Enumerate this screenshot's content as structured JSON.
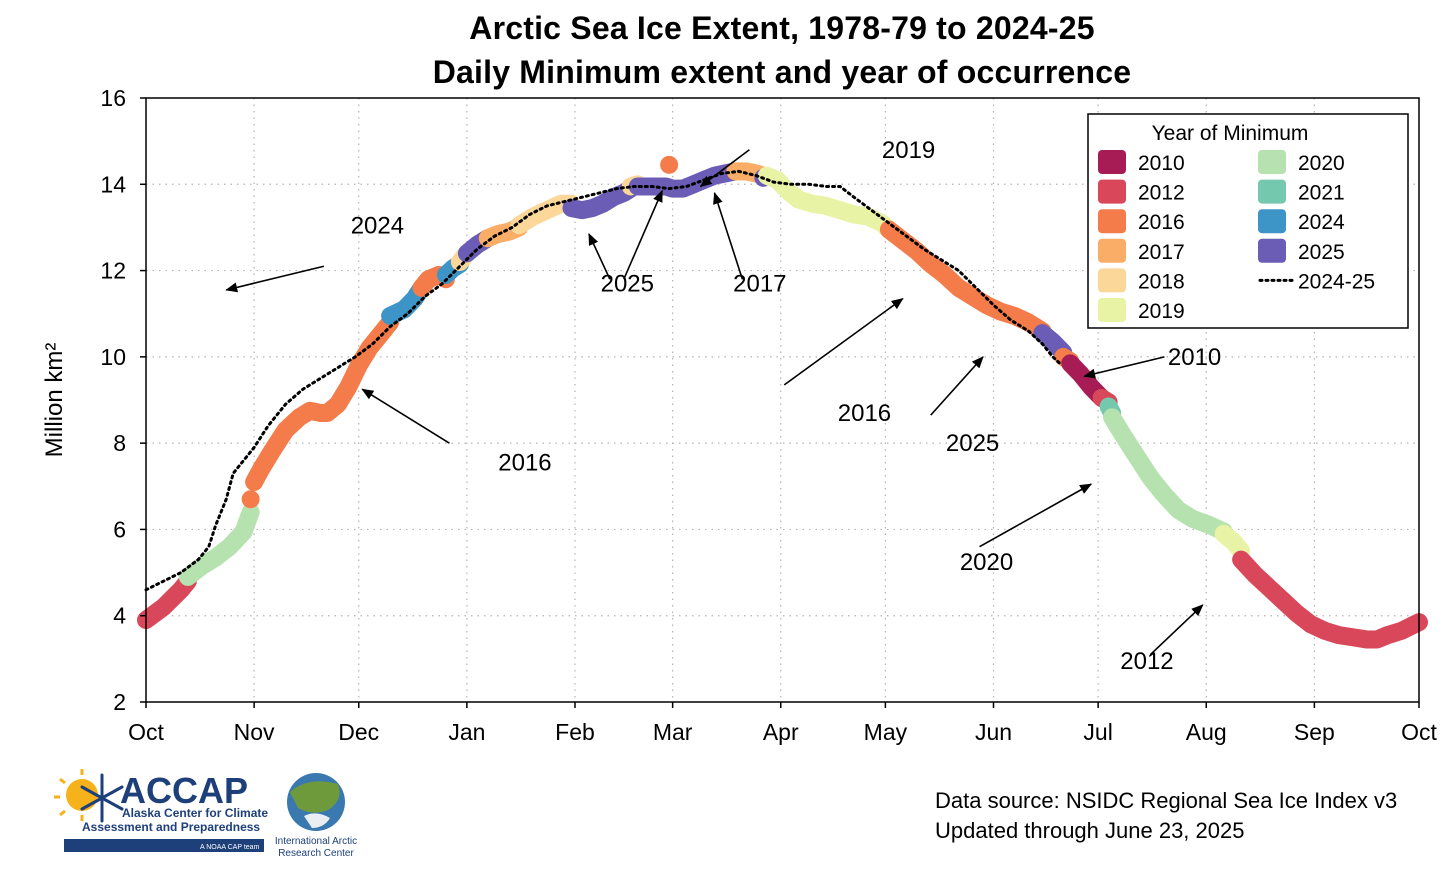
{
  "title": "Arctic Sea Ice Extent, 1978-79 to 2024-25",
  "subtitle": "Daily Minimum extent and year of occurrence",
  "footer": {
    "source": "Data source: NSIDC Regional Sea Ice Index v3",
    "updated": "Updated through June 23, 2025"
  },
  "logos": {
    "accap_name": "ACCAP",
    "accap_line1": "Alaska Center for Climate",
    "accap_line2": "Assessment and Preparedness",
    "accap_tag": "A NOAA CAP team",
    "iarc_line1": "International Arctic",
    "iarc_line2": "Research Center"
  },
  "chart_data": {
    "type": "line",
    "ylabel": "Million km²",
    "xlabel": "",
    "ylim": [
      2,
      16
    ],
    "yticks": [
      2,
      4,
      6,
      8,
      10,
      12,
      14,
      16
    ],
    "xlim_days": [
      0,
      365
    ],
    "xticks": [
      {
        "label": "Oct",
        "day": 0
      },
      {
        "label": "Nov",
        "day": 31
      },
      {
        "label": "Dec",
        "day": 61
      },
      {
        "label": "Jan",
        "day": 92
      },
      {
        "label": "Feb",
        "day": 123
      },
      {
        "label": "Mar",
        "day": 151
      },
      {
        "label": "Apr",
        "day": 182
      },
      {
        "label": "May",
        "day": 212
      },
      {
        "label": "Jun",
        "day": 243
      },
      {
        "label": "Jul",
        "day": 273
      },
      {
        "label": "Aug",
        "day": 304
      },
      {
        "label": "Sep",
        "day": 335
      },
      {
        "label": "Oct",
        "day": 365
      }
    ],
    "grid": true,
    "legend": {
      "title": "Year of Minimum",
      "placement": "top-right",
      "entries": [
        {
          "label": "2010",
          "color": "#a81c56"
        },
        {
          "label": "2012",
          "color": "#d9485a"
        },
        {
          "label": "2016",
          "color": "#f47c4a"
        },
        {
          "label": "2017",
          "color": "#f9ad67"
        },
        {
          "label": "2018",
          "color": "#fbd899"
        },
        {
          "label": "2019",
          "color": "#e8f3a6"
        },
        {
          "label": "2020",
          "color": "#b5e2ae"
        },
        {
          "label": "2021",
          "color": "#73c8ad"
        },
        {
          "label": "2024",
          "color": "#3d94c6"
        },
        {
          "label": "2025",
          "color": "#6b5cb5"
        },
        {
          "label": "2024-25",
          "color": "#000000",
          "style": "dotted"
        }
      ]
    },
    "series": [
      {
        "name": "2012",
        "color": "#d9485a",
        "points": [
          [
            0,
            3.9
          ],
          [
            5,
            4.2
          ],
          [
            10,
            4.6
          ],
          [
            12,
            4.8
          ]
        ]
      },
      {
        "name": "2020",
        "color": "#b5e2ae",
        "points": [
          [
            12,
            4.9
          ],
          [
            16,
            5.15
          ],
          [
            20,
            5.35
          ],
          [
            24,
            5.6
          ],
          [
            28,
            5.95
          ],
          [
            30,
            6.4
          ]
        ]
      },
      {
        "name": "2016",
        "color": "#f47c4a",
        "points": [
          [
            30,
            6.7
          ]
        ]
      },
      {
        "name": "2016",
        "color": "#f47c4a",
        "points": [
          [
            31,
            7.1
          ],
          [
            33,
            7.4
          ],
          [
            36,
            7.8
          ],
          [
            40,
            8.3
          ],
          [
            44,
            8.6
          ],
          [
            47,
            8.75
          ],
          [
            50,
            8.7
          ],
          [
            52,
            8.7
          ],
          [
            55,
            8.9
          ],
          [
            58,
            9.3
          ],
          [
            61,
            9.8
          ],
          [
            64,
            10.2
          ],
          [
            67,
            10.5
          ],
          [
            70,
            10.8
          ]
        ]
      },
      {
        "name": "2024",
        "color": "#3d94c6",
        "points": [
          [
            70,
            10.95
          ],
          [
            74,
            11.1
          ],
          [
            77,
            11.35
          ],
          [
            79,
            11.6
          ]
        ]
      },
      {
        "name": "2016",
        "color": "#f47c4a",
        "points": [
          [
            79,
            11.6
          ],
          [
            81,
            11.8
          ],
          [
            84,
            11.9
          ],
          [
            86,
            11.8
          ]
        ]
      },
      {
        "name": "2024",
        "color": "#3d94c6",
        "points": [
          [
            86,
            11.9
          ],
          [
            88,
            12.05
          ],
          [
            90,
            12.15
          ]
        ]
      },
      {
        "name": "2018",
        "color": "#fbd899",
        "points": [
          [
            90,
            12.2
          ],
          [
            92,
            12.4
          ]
        ]
      },
      {
        "name": "2025",
        "color": "#6b5cb5",
        "points": [
          [
            92,
            12.4
          ],
          [
            95,
            12.6
          ],
          [
            98,
            12.75
          ]
        ]
      },
      {
        "name": "2017",
        "color": "#f9ad67",
        "points": [
          [
            98,
            12.75
          ],
          [
            101,
            12.85
          ],
          [
            104,
            12.9
          ],
          [
            107,
            13.0
          ]
        ]
      },
      {
        "name": "2018",
        "color": "#fbd899",
        "points": [
          [
            107,
            13.05
          ],
          [
            111,
            13.25
          ],
          [
            115,
            13.4
          ],
          [
            119,
            13.55
          ],
          [
            122,
            13.55
          ]
        ]
      },
      {
        "name": "2025",
        "color": "#6b5cb5",
        "points": [
          [
            122,
            13.45
          ],
          [
            125,
            13.4
          ],
          [
            128,
            13.45
          ],
          [
            131,
            13.55
          ],
          [
            134,
            13.7
          ],
          [
            137,
            13.8
          ],
          [
            139,
            13.9
          ]
        ]
      },
      {
        "name": "2018",
        "color": "#fbd899",
        "points": [
          [
            139,
            13.95
          ],
          [
            141,
            14.0
          ]
        ]
      },
      {
        "name": "2025",
        "color": "#6b5cb5",
        "points": [
          [
            141,
            13.95
          ],
          [
            145,
            13.95
          ],
          [
            149,
            13.95
          ],
          [
            151,
            13.9
          ],
          [
            154,
            13.9
          ],
          [
            157,
            14.0
          ],
          [
            160,
            14.1
          ],
          [
            163,
            14.2
          ],
          [
            166,
            14.25
          ],
          [
            169,
            14.3
          ]
        ]
      },
      {
        "name": "2017",
        "color": "#f9ad67",
        "points": [
          [
            169,
            14.3
          ],
          [
            172,
            14.3
          ],
          [
            175,
            14.25
          ],
          [
            177,
            14.2
          ]
        ]
      },
      {
        "name": "2025",
        "color": "#6b5cb5",
        "points": [
          [
            177,
            14.15
          ]
        ]
      },
      {
        "name": "2019",
        "color": "#e8f3a6",
        "points": [
          [
            178,
            14.2
          ],
          [
            181,
            14.1
          ],
          [
            184,
            13.85
          ],
          [
            187,
            13.65
          ],
          [
            191,
            13.55
          ],
          [
            195,
            13.5
          ],
          [
            199,
            13.4
          ],
          [
            203,
            13.3
          ],
          [
            207,
            13.25
          ],
          [
            211,
            13.1
          ],
          [
            213,
            12.95
          ]
        ]
      },
      {
        "name": "2016",
        "color": "#f47c4a",
        "points": [
          [
            213,
            12.95
          ],
          [
            217,
            12.7
          ],
          [
            221,
            12.45
          ],
          [
            225,
            12.15
          ],
          [
            229,
            11.9
          ],
          [
            233,
            11.6
          ],
          [
            237,
            11.4
          ],
          [
            241,
            11.2
          ],
          [
            245,
            11.05
          ],
          [
            249,
            10.95
          ],
          [
            253,
            10.8
          ],
          [
            257,
            10.6
          ]
        ]
      },
      {
        "name": "2025",
        "color": "#6b5cb5",
        "points": [
          [
            257,
            10.55
          ],
          [
            260,
            10.35
          ],
          [
            263,
            10.1
          ]
        ]
      },
      {
        "name": "2016",
        "color": "#f47c4a",
        "points": [
          [
            263,
            10.0
          ],
          [
            265,
            9.9
          ]
        ]
      },
      {
        "name": "2010",
        "color": "#a81c56",
        "points": [
          [
            265,
            9.85
          ],
          [
            268,
            9.6
          ],
          [
            271,
            9.3
          ],
          [
            274,
            9.05
          ]
        ]
      },
      {
        "name": "2012",
        "color": "#d9485a",
        "points": [
          [
            274,
            9.05
          ],
          [
            276,
            8.95
          ]
        ]
      },
      {
        "name": "2021",
        "color": "#73c8ad",
        "points": [
          [
            276,
            8.85
          ],
          [
            277,
            8.7
          ]
        ]
      },
      {
        "name": "2020",
        "color": "#b5e2ae",
        "points": [
          [
            277,
            8.6
          ],
          [
            280,
            8.2
          ],
          [
            284,
            7.7
          ],
          [
            288,
            7.2
          ],
          [
            292,
            6.8
          ],
          [
            296,
            6.45
          ],
          [
            300,
            6.25
          ],
          [
            305,
            6.1
          ],
          [
            309,
            5.95
          ]
        ]
      },
      {
        "name": "2019",
        "color": "#e8f3a6",
        "points": [
          [
            309,
            5.9
          ],
          [
            312,
            5.7
          ],
          [
            314,
            5.5
          ]
        ]
      },
      {
        "name": "2012",
        "color": "#d9485a",
        "points": [
          [
            314,
            5.3
          ],
          [
            318,
            4.95
          ],
          [
            322,
            4.65
          ],
          [
            326,
            4.35
          ],
          [
            330,
            4.05
          ],
          [
            334,
            3.8
          ],
          [
            338,
            3.65
          ],
          [
            342,
            3.55
          ],
          [
            346,
            3.5
          ],
          [
            350,
            3.45
          ],
          [
            353,
            3.45
          ],
          [
            356,
            3.55
          ],
          [
            360,
            3.65
          ],
          [
            365,
            3.85
          ]
        ]
      },
      {
        "name": "2024-25",
        "color": "#000000",
        "style": "dotted",
        "points": [
          [
            0,
            4.6
          ],
          [
            5,
            4.8
          ],
          [
            10,
            5.0
          ],
          [
            15,
            5.3
          ],
          [
            18,
            5.6
          ],
          [
            20,
            6.1
          ],
          [
            23,
            6.7
          ],
          [
            25,
            7.3
          ],
          [
            28,
            7.6
          ],
          [
            31,
            7.9
          ],
          [
            35,
            8.4
          ],
          [
            40,
            8.9
          ],
          [
            45,
            9.25
          ],
          [
            50,
            9.5
          ],
          [
            55,
            9.75
          ],
          [
            60,
            10.0
          ],
          [
            65,
            10.3
          ],
          [
            70,
            10.7
          ],
          [
            75,
            11.0
          ],
          [
            80,
            11.4
          ],
          [
            85,
            11.7
          ],
          [
            90,
            12.1
          ],
          [
            95,
            12.5
          ],
          [
            100,
            12.8
          ],
          [
            105,
            13.0
          ],
          [
            110,
            13.3
          ],
          [
            115,
            13.5
          ],
          [
            120,
            13.6
          ],
          [
            125,
            13.7
          ],
          [
            130,
            13.8
          ],
          [
            135,
            13.9
          ],
          [
            140,
            13.95
          ],
          [
            145,
            13.95
          ],
          [
            150,
            13.9
          ],
          [
            155,
            13.95
          ],
          [
            160,
            14.1
          ],
          [
            165,
            14.25
          ],
          [
            170,
            14.3
          ],
          [
            175,
            14.2
          ],
          [
            180,
            14.05
          ],
          [
            185,
            14.0
          ],
          [
            190,
            14.0
          ],
          [
            195,
            13.95
          ],
          [
            199,
            13.95
          ],
          [
            203,
            13.7
          ],
          [
            208,
            13.4
          ],
          [
            213,
            13.1
          ],
          [
            218,
            12.8
          ],
          [
            223,
            12.5
          ],
          [
            228,
            12.25
          ],
          [
            233,
            12.0
          ],
          [
            238,
            11.6
          ],
          [
            243,
            11.2
          ],
          [
            248,
            10.85
          ],
          [
            253,
            10.6
          ],
          [
            257,
            10.3
          ],
          [
            260,
            10.0
          ],
          [
            262,
            9.85
          ]
        ]
      }
    ],
    "outliers": [
      {
        "name": "2016",
        "x_day": 150,
        "y": 14.45,
        "color": "#f47c4a"
      }
    ],
    "annotations": [
      {
        "text": "2024",
        "tx": 74,
        "ty": 13.05,
        "ax1": 51,
        "ay1": 12.1,
        "ax2": 23,
        "ay2": 11.55,
        "ha": "right"
      },
      {
        "text": "2016",
        "tx": 101,
        "ty": 7.55,
        "ax1": 87,
        "ay1": 8.0,
        "ax2": 62,
        "ay2": 9.25,
        "ha": "left"
      },
      {
        "text": "2025",
        "tx": 138,
        "ty": 11.7,
        "ax1": 133,
        "ay1": 11.8,
        "ax2": 127,
        "ay2": 12.85,
        "ha": "center"
      },
      {
        "text": "",
        "tx": 0,
        "ty": 0,
        "ax1": 137,
        "ay1": 11.8,
        "ax2": 148,
        "ay2": 13.85,
        "ha": "center"
      },
      {
        "text": "2017",
        "tx": 176,
        "ty": 11.7,
        "ax1": 171,
        "ay1": 11.8,
        "ax2": 163,
        "ay2": 13.8,
        "ha": "center"
      },
      {
        "text": "2019",
        "tx": 211,
        "ty": 14.8,
        "ax1": 173,
        "ay1": 14.8,
        "ax2": 159,
        "ay2": 13.95,
        "ha": "left"
      },
      {
        "text": "2016",
        "tx": 206,
        "ty": 8.7,
        "ax1": 183,
        "ay1": 9.35,
        "ax2": 217,
        "ay2": 11.35,
        "ha": "center"
      },
      {
        "text": "2025",
        "tx": 237,
        "ty": 8.0,
        "ax1": 225,
        "ay1": 8.65,
        "ax2": 240,
        "ay2": 10.0,
        "ha": "center"
      },
      {
        "text": "2010",
        "tx": 293,
        "ty": 10.0,
        "ax1": 292,
        "ay1": 10.0,
        "ax2": 269,
        "ay2": 9.55,
        "ha": "left"
      },
      {
        "text": "2020",
        "tx": 241,
        "ty": 5.25,
        "ax1": 239,
        "ay1": 5.6,
        "ax2": 271,
        "ay2": 7.05,
        "ha": "center"
      },
      {
        "text": "2012",
        "tx": 287,
        "ty": 2.95,
        "ax1": 288,
        "ay1": 3.1,
        "ax2": 303,
        "ay2": 4.25,
        "ha": "center"
      }
    ]
  }
}
